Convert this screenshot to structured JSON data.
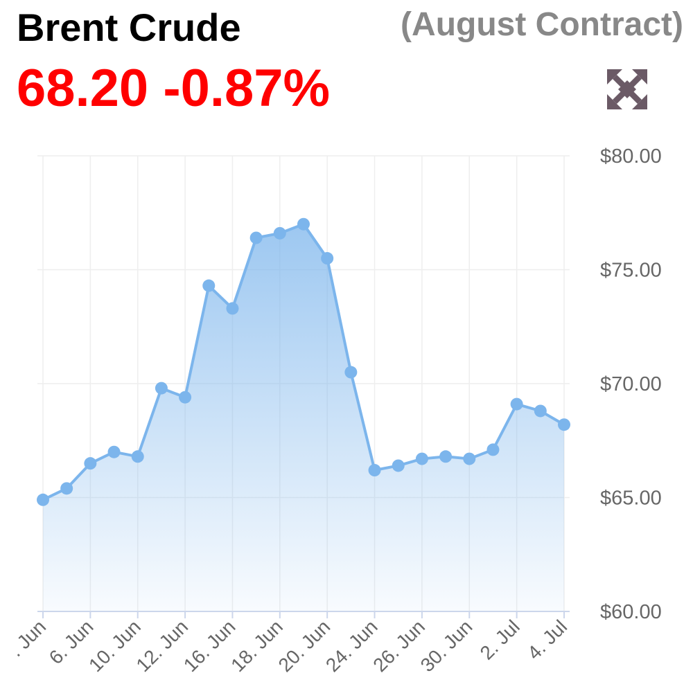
{
  "header": {
    "title": "Brent Crude",
    "subtitle": "(August Contract)",
    "price": "68.20",
    "change": "-0.87%",
    "price_color": "#ff0000"
  },
  "controls": {
    "expand_icon": "fullscreen-arrows-icon"
  },
  "colors": {
    "line": "#7cb5ec",
    "grid": "#eeeeee",
    "axis": "#ccd6eb"
  },
  "chart_data": {
    "type": "area",
    "title": "",
    "xlabel": "",
    "ylabel": "",
    "ylim": [
      60,
      80
    ],
    "yticks": [
      60,
      65,
      70,
      75,
      80
    ],
    "ytick_labels": [
      "$60.00",
      "$65.00",
      "$70.00",
      "$75.00",
      "$80.00"
    ],
    "xtick_labels": [
      ". Jun",
      "6. Jun",
      "10. Jun",
      "12. Jun",
      "16. Jun",
      "18. Jun",
      "20. Jun",
      "24. Jun",
      "26. Jun",
      "30. Jun",
      "2. Jul",
      "4. Jul"
    ],
    "y_axis_position": "right",
    "grid": true,
    "legend": "none",
    "series": [
      {
        "values": [
          64.9,
          65.4,
          66.5,
          67.0,
          66.8,
          69.8,
          69.4,
          74.3,
          73.3,
          76.4,
          76.6,
          77.0,
          75.5,
          70.5,
          66.2,
          66.4,
          66.7,
          66.8,
          66.7,
          67.1,
          69.1,
          68.8,
          68.2
        ]
      }
    ]
  }
}
